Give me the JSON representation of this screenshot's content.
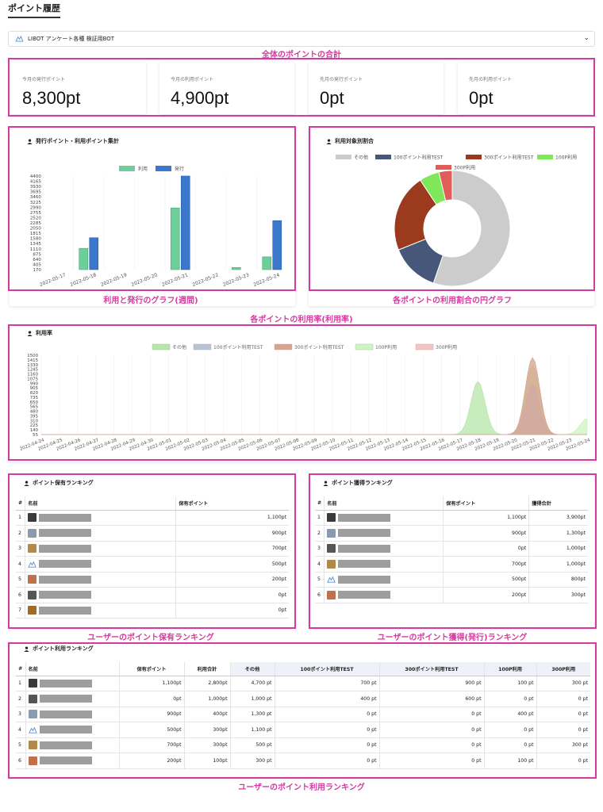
{
  "page_title": "ポイント履歴",
  "bot_select": {
    "value": "LIBOT アンケート各種 検証用BOT"
  },
  "annotations": {
    "total": "全体のポイントの合計",
    "weekly_graph": "利用と発行のグラフ(週間)",
    "pie": "各ポイントの利用割合の円グラフ",
    "usage_rate": "各ポイントの利用率(利用率)",
    "holding_rank": "ユーザーのポイント保有ランキング",
    "earned_rank": "ユーザーのポイント獲得(発行)ランキング",
    "usage_rank": "ユーザーのポイント利用ランキング"
  },
  "stats": [
    {
      "label": "今月の発行ポイント",
      "value": "8,300pt"
    },
    {
      "label": "今月の利用ポイント",
      "value": "4,900pt"
    },
    {
      "label": "先月の発行ポイント",
      "value": "0pt"
    },
    {
      "label": "先月の利用ポイント",
      "value": "0pt"
    }
  ],
  "bar_card": {
    "title": "発行ポイント・利用ポイント集計"
  },
  "pie_card": {
    "title": "利用対象別割合"
  },
  "rate_card": {
    "title": "利用率"
  },
  "holding_card": {
    "title": "ポイント保有ランキング",
    "headers": [
      "#",
      "名前",
      "保有ポイント"
    ]
  },
  "earned_card": {
    "title": "ポイント獲得ランキング",
    "headers": [
      "#",
      "名前",
      "保有ポイント",
      "獲得合計"
    ]
  },
  "usage_card": {
    "title": "ポイント利用ランキング",
    "headers": [
      "#",
      "名前",
      "保有ポイント",
      "利用合計",
      "その他",
      "100ポイント利用TEST",
      "300ポイント利用TEST",
      "100P利用",
      "300P利用"
    ]
  },
  "holding_rows": [
    {
      "rank": "1",
      "points": "1,100pt",
      "avatar": "#3a3a3a"
    },
    {
      "rank": "2",
      "points": "900pt",
      "avatar": "#8a9bb0"
    },
    {
      "rank": "3",
      "points": "700pt",
      "avatar": "#b08a4a"
    },
    {
      "rank": "4",
      "points": "500pt",
      "avatar": "logo"
    },
    {
      "rank": "5",
      "points": "200pt",
      "avatar": "#c0704a"
    },
    {
      "rank": "6",
      "points": "0pt",
      "avatar": "#555"
    },
    {
      "rank": "7",
      "points": "0pt",
      "avatar": "#a06a2a"
    }
  ],
  "earned_rows": [
    {
      "rank": "1",
      "points": "1,100pt",
      "earned": "3,900pt",
      "avatar": "#3a3a3a"
    },
    {
      "rank": "2",
      "points": "900pt",
      "earned": "1,300pt",
      "avatar": "#8a9bb0"
    },
    {
      "rank": "3",
      "points": "0pt",
      "earned": "1,000pt",
      "avatar": "#555"
    },
    {
      "rank": "4",
      "points": "700pt",
      "earned": "1,000pt",
      "avatar": "#b08a4a"
    },
    {
      "rank": "5",
      "points": "500pt",
      "earned": "800pt",
      "avatar": "logo"
    },
    {
      "rank": "6",
      "points": "200pt",
      "earned": "300pt",
      "avatar": "#c0704a"
    }
  ],
  "usage_rows": [
    {
      "rank": "1",
      "points": "1,100pt",
      "used": "2,800pt",
      "other": "4,700 pt",
      "t100": "700 pt",
      "t300": "900 pt",
      "p100": "100 pt",
      "p300": "300 pt",
      "avatar": "#3a3a3a"
    },
    {
      "rank": "2",
      "points": "0pt",
      "used": "1,000pt",
      "other": "1,000 pt",
      "t100": "400 pt",
      "t300": "600 pt",
      "p100": "0 pt",
      "p300": "0 pt",
      "avatar": "#555"
    },
    {
      "rank": "3",
      "points": "900pt",
      "used": "400pt",
      "other": "1,300 pt",
      "t100": "0 pt",
      "t300": "0 pt",
      "p100": "400 pt",
      "p300": "0 pt",
      "avatar": "#8a9bb0"
    },
    {
      "rank": "4",
      "points": "500pt",
      "used": "300pt",
      "other": "1,100 pt",
      "t100": "0 pt",
      "t300": "0 pt",
      "p100": "0 pt",
      "p300": "0 pt",
      "avatar": "logo"
    },
    {
      "rank": "5",
      "points": "700pt",
      "used": "300pt",
      "other": "500 pt",
      "t100": "0 pt",
      "t300": "0 pt",
      "p100": "0 pt",
      "p300": "300 pt",
      "avatar": "#b08a4a"
    },
    {
      "rank": "6",
      "points": "200pt",
      "used": "100pt",
      "other": "300 pt",
      "t100": "0 pt",
      "t300": "0 pt",
      "p100": "100 pt",
      "p300": "0 pt",
      "avatar": "#c0704a"
    }
  ],
  "chart_data": [
    {
      "type": "bar",
      "categories": [
        "2022-05-17",
        "2022-05-18",
        "2022-05-19",
        "2022-05-20",
        "2022-05-21",
        "2022-05-22",
        "2022-05-23",
        "2022-05-24"
      ],
      "series": [
        {
          "name": "利用",
          "color": "#6ccf9a",
          "values": [
            0,
            1000,
            0,
            0,
            2900,
            0,
            100,
            600
          ]
        },
        {
          "name": "発行",
          "color": "#3b78cc",
          "values": [
            0,
            1500,
            0,
            0,
            4400,
            0,
            0,
            2300
          ]
        }
      ],
      "yticks": [
        "4400",
        "4165",
        "3930",
        "3695",
        "3460",
        "3225",
        "2990",
        "2755",
        "2520",
        "2285",
        "2050",
        "1815",
        "1580",
        "1345",
        "1110",
        "875",
        "640",
        "405",
        "170"
      ],
      "ylim": [
        0,
        4400
      ],
      "legend": "top-center"
    },
    {
      "type": "pie",
      "labels": [
        "その他",
        "100ポイント利用TEST",
        "300ポイント利用TEST",
        "100P利用",
        "300P利用"
      ],
      "colors": [
        "#cccccc",
        "#47577a",
        "#9c3a1e",
        "#7fe85a",
        "#e05e58"
      ],
      "values": [
        8900,
        2200,
        3500,
        900,
        600
      ],
      "legend": "top"
    },
    {
      "type": "area",
      "x": [
        "2022-04-24",
        "2022-04-25",
        "2022-04-26",
        "2022-04-27",
        "2022-04-28",
        "2022-04-29",
        "2022-04-30",
        "2022-05-01",
        "2022-05-02",
        "2022-05-03",
        "2022-05-04",
        "2022-05-05",
        "2022-05-06",
        "2022-05-07",
        "2022-05-08",
        "2022-05-09",
        "2022-05-10",
        "2022-05-11",
        "2022-05-12",
        "2022-05-13",
        "2022-05-14",
        "2022-05-15",
        "2022-05-16",
        "2022-05-17",
        "2022-05-18",
        "2022-05-19",
        "2022-05-20",
        "2022-05-21",
        "2022-05-22",
        "2022-05-23",
        "2022-05-24"
      ],
      "series": [
        {
          "name": "その他",
          "color": "#b6e6a8",
          "peaks": [
            [
              24,
              1000
            ],
            [
              27,
              1300
            ]
          ]
        },
        {
          "name": "100ポイント利用TEST",
          "color": "#b9c2d4",
          "peaks": [
            [
              27,
              950
            ]
          ]
        },
        {
          "name": "300ポイント利用TEST",
          "color": "#d9a28e",
          "peaks": [
            [
              27,
              1450
            ]
          ]
        },
        {
          "name": "100P利用",
          "color": "#cdf5c0",
          "peaks": [
            [
              27,
              200
            ],
            [
              30,
              300
            ]
          ]
        },
        {
          "name": "300P利用",
          "color": "#f5c4c0",
          "peaks": [
            [
              27,
              300
            ]
          ]
        }
      ],
      "yticks": [
        "1500",
        "1415",
        "1330",
        "1245",
        "1160",
        "1075",
        "990",
        "905",
        "820",
        "735",
        "650",
        "565",
        "480",
        "395",
        "310",
        "225",
        "140",
        "55"
      ],
      "ylim": [
        0,
        1500
      ],
      "legend": "top-center"
    }
  ]
}
